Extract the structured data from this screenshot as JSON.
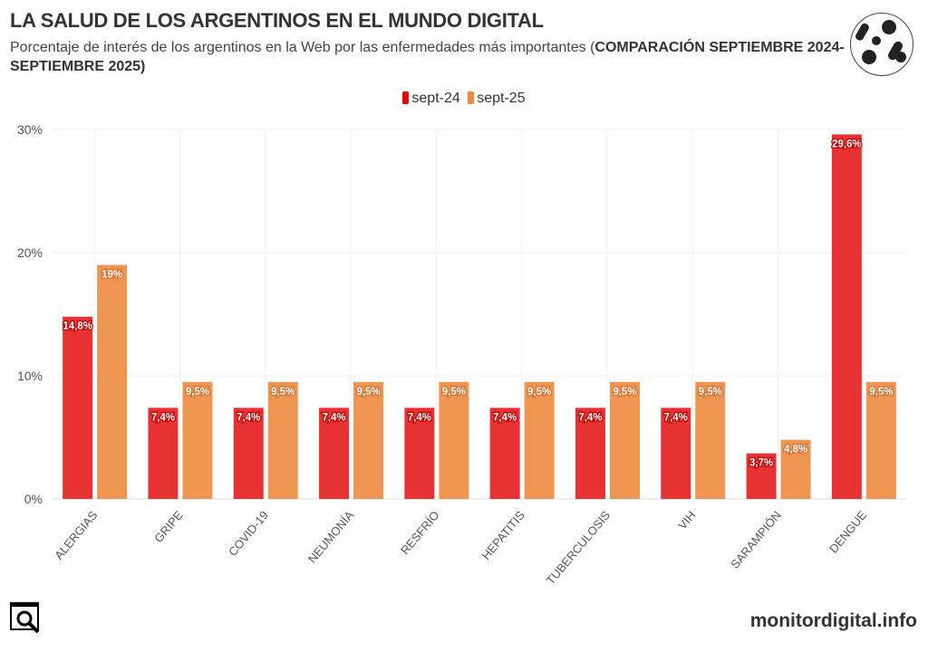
{
  "header": {
    "title": "LA SALUD DE LOS ARGENTINOS EN EL MUNDO DIGITAL",
    "subtitle_plain": "Porcentaje de interés de los argentinos en la Web por las enfermedades más importantes (",
    "subtitle_bold": "COMPARACIÓN SEPTIEMBRE 2024-SEPTIEMBRE 2025)"
  },
  "footer": {
    "brand": "monitordigital.info"
  },
  "chart_data": {
    "type": "bar",
    "title": "LA SALUD DE LOS ARGENTINOS EN EL MUNDO DIGITAL",
    "xlabel": "",
    "ylabel": "",
    "ylim": [
      0,
      30
    ],
    "yticks": [
      0,
      10,
      20,
      30
    ],
    "ytick_labels": [
      "0%",
      "10%",
      "20%",
      "30%"
    ],
    "grid": true,
    "legend_position": "top-center",
    "categories": [
      "ALERGIAS",
      "GRIPE",
      "COVID-19",
      "NEUMONÍA",
      "RESFRÍO",
      "HEPATITIS",
      "TUBERCULOSIS",
      "VIH",
      "SARAMPIÓN",
      "DENGUE"
    ],
    "series": [
      {
        "name": "sept-24",
        "color": "#e63232",
        "values": [
          14.8,
          7.4,
          7.4,
          7.4,
          7.4,
          7.4,
          7.4,
          7.4,
          3.7,
          29.6
        ],
        "labels": [
          "14,8%",
          "7,4%",
          "7,4%",
          "7,4%",
          "7,4%",
          "7,4%",
          "7,4%",
          "7,4%",
          "3,7%",
          "29,6%"
        ]
      },
      {
        "name": "sept-25",
        "color": "#ef9552",
        "values": [
          19,
          9.5,
          9.5,
          9.5,
          9.5,
          9.5,
          9.5,
          9.5,
          4.8,
          9.5
        ],
        "labels": [
          "19%",
          "9,5%",
          "9,5%",
          "9,5%",
          "9,5%",
          "9,5%",
          "9,5%",
          "9,5%",
          "4,8%",
          "9,5%"
        ]
      }
    ]
  }
}
